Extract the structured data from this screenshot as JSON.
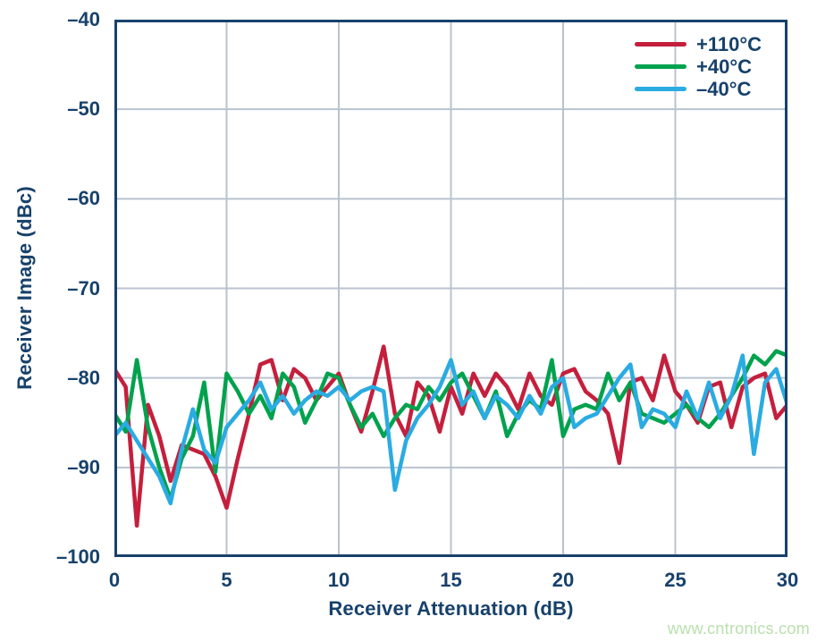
{
  "chart_data": {
    "type": "line",
    "title": "",
    "xlabel": "Receiver Attenuation (dB)",
    "ylabel": "Receiver Image (dBc)",
    "xlim": [
      0,
      30
    ],
    "ylim": [
      -100,
      -40
    ],
    "x_ticks": [
      0,
      5,
      10,
      15,
      20,
      25,
      30
    ],
    "x_tick_labels": [
      "0",
      "5",
      "10",
      "15",
      "20",
      "25",
      "30"
    ],
    "y_ticks": [
      -40,
      -50,
      -60,
      -70,
      -80,
      -90,
      -100
    ],
    "y_tick_labels": [
      "–40",
      "–50",
      "–60",
      "–70",
      "–80",
      "–90",
      "–100"
    ],
    "grid": true,
    "legend_position": "top-right",
    "x_start": 0,
    "x_step": 0.5,
    "series": [
      {
        "name": "+110°C",
        "color": "#c41f3d",
        "values": [
          -79,
          -81,
          -96.5,
          -83,
          -86.5,
          -91.5,
          -87.5,
          -88,
          -88.5,
          -91,
          -94.5,
          -89,
          -84,
          -78.5,
          -78,
          -82.5,
          -79,
          -80,
          -82.5,
          -81,
          -79.5,
          -83,
          -86,
          -81.5,
          -76.5,
          -84,
          -86.5,
          -80.5,
          -82,
          -86,
          -81,
          -84,
          -79.5,
          -82,
          -79.5,
          -81,
          -83.5,
          -79.5,
          -82,
          -83,
          -79.5,
          -79,
          -81.5,
          -82.5,
          -84,
          -89.5,
          -80.5,
          -80,
          -82.5,
          -77.5,
          -81.5,
          -83,
          -85,
          -81,
          -80.5,
          -85.5,
          -81,
          -80,
          -79.5,
          -84.5,
          -83
        ]
      },
      {
        "name": "+40°C",
        "color": "#00a24d",
        "values": [
          -84,
          -86,
          -78,
          -85.5,
          -90,
          -93.5,
          -89,
          -86.5,
          -80.5,
          -90.5,
          -79.5,
          -81.5,
          -84,
          -82,
          -84.5,
          -79.5,
          -81,
          -85,
          -82.5,
          -79.5,
          -80,
          -83,
          -85.5,
          -84,
          -86.5,
          -84.5,
          -83,
          -83.5,
          -81,
          -82.5,
          -80.5,
          -79.5,
          -82,
          -84.5,
          -81.5,
          -86.5,
          -84,
          -82.5,
          -83.5,
          -78,
          -86.5,
          -83.5,
          -83,
          -83.5,
          -79.5,
          -82.5,
          -80.5,
          -84,
          -84.5,
          -85,
          -84,
          -83,
          -84.5,
          -85.5,
          -84,
          -82,
          -80,
          -77.5,
          -78.5,
          -77,
          -77.5
        ]
      },
      {
        "name": "–40°C",
        "color": "#2aabe2",
        "values": [
          -86.5,
          -85,
          -87,
          -89,
          -91,
          -94,
          -88,
          -83.5,
          -88,
          -89.5,
          -85.5,
          -84,
          -82.5,
          -80.5,
          -83.5,
          -82,
          -84,
          -82.5,
          -81.5,
          -82,
          -81,
          -82.5,
          -81.5,
          -81,
          -81.5,
          -92.5,
          -87,
          -84.5,
          -83,
          -81,
          -78,
          -83,
          -81.5,
          -84.5,
          -82,
          -83,
          -84.5,
          -82,
          -84,
          -81,
          -80,
          -85.5,
          -84.5,
          -84,
          -82,
          -80,
          -78.5,
          -85.5,
          -83.5,
          -84,
          -85.5,
          -81.5,
          -84.5,
          -80.5,
          -84.5,
          -82,
          -77.5,
          -88.5,
          -80.5,
          -79,
          -83
        ]
      }
    ]
  },
  "colors": {
    "axis_text": "#17416b",
    "frame": "#17416b",
    "grid": "#b9c3cf",
    "background": "#ffffff"
  },
  "watermark": {
    "text": "www.cntronics.com",
    "color": "#b9e0ad"
  }
}
